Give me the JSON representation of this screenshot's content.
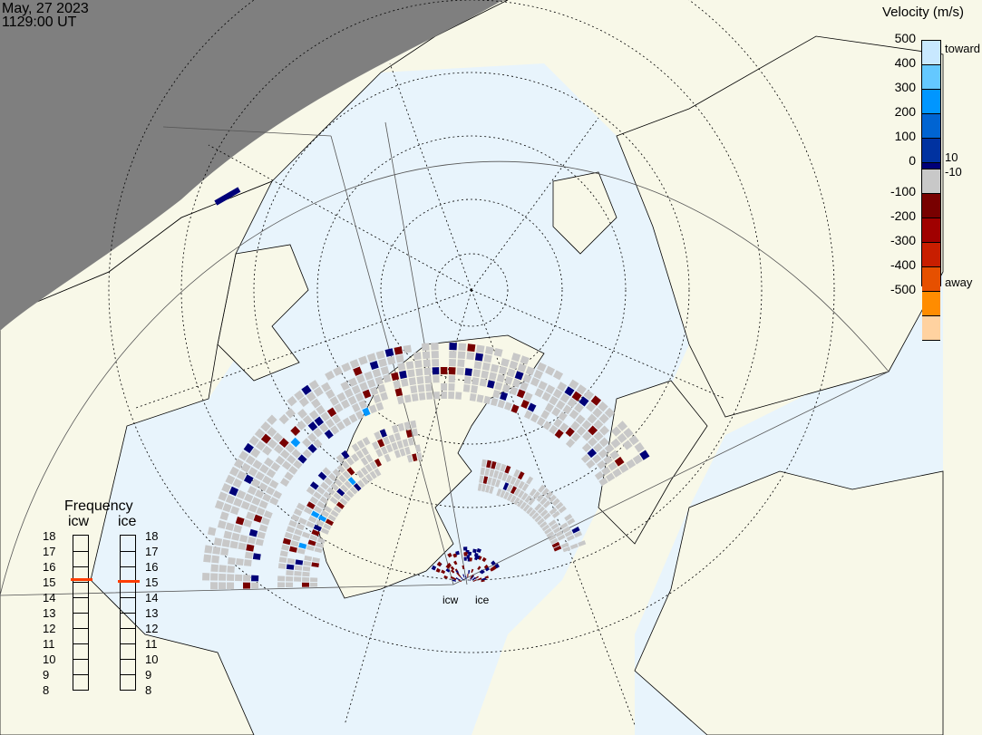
{
  "header": {
    "date": "May, 27 2023",
    "time": "1129:00 UT"
  },
  "colorbar": {
    "title": "Velocity (m/s)",
    "ticks": [
      "500",
      "400",
      "300",
      "200",
      "100",
      "0",
      "-100",
      "-200",
      "-300",
      "-400",
      "-500"
    ],
    "toward_label": "toward",
    "away_label": "away",
    "near_zero_pos": "10",
    "near_zero_neg": "-10",
    "colors": [
      "#c8e8ff",
      "#64c8ff",
      "#0096ff",
      "#0064d2",
      "#0032a0",
      "#000078",
      "#c8c8c8",
      "#780000",
      "#a00000",
      "#c81e00",
      "#e65000",
      "#ff8c00",
      "#ffd2a0"
    ]
  },
  "frequency": {
    "title": "Frequency",
    "radars": [
      {
        "name": "icw",
        "value_mhz": 15.1
      },
      {
        "name": "ice",
        "value_mhz": 15.0
      }
    ],
    "ticks": [
      "18",
      "17",
      "16",
      "15",
      "14",
      "13",
      "12",
      "11",
      "10",
      "9",
      "8"
    ],
    "range": [
      8,
      18
    ],
    "marker_color": "#ff3c00"
  },
  "map": {
    "radar_labels": [
      "icw",
      "ice"
    ],
    "land_color": "#f8f8e8",
    "ocean_color": "#e8f4fc",
    "night_color": "#7f7f7f",
    "no_scatter_color": "#c8c8c8"
  }
}
